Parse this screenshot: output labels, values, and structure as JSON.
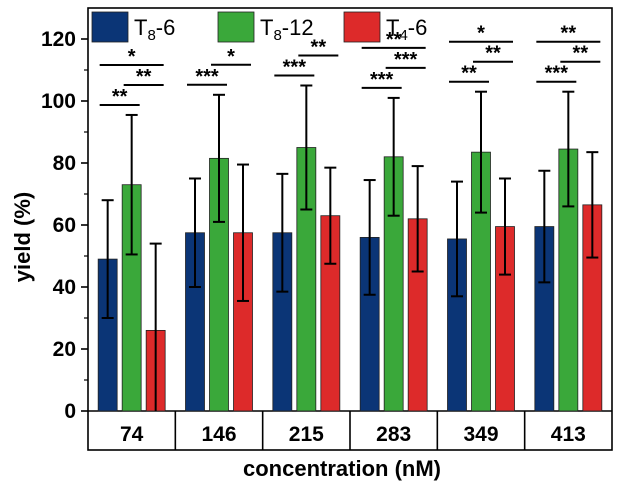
{
  "chart_data": {
    "type": "bar",
    "title": "",
    "xlabel": "concentration (nM)",
    "ylabel": "yield (%)",
    "ylim": [
      0,
      130
    ],
    "yticks": [
      0,
      20,
      40,
      60,
      80,
      100,
      120
    ],
    "categories": [
      "74",
      "146",
      "215",
      "283",
      "349",
      "413"
    ],
    "legend_placement": "top",
    "series": [
      {
        "name_main": "T",
        "name_sub": "8",
        "name_suffix": "-6",
        "color": "#0b3576",
        "values": [
          49,
          57.5,
          57.5,
          56,
          55.5,
          59.5
        ],
        "errors": [
          19,
          17.5,
          19,
          18.5,
          18.5,
          18
        ]
      },
      {
        "name_main": "T",
        "name_sub": "8",
        "name_suffix": "-12",
        "color": "#3aa83a",
        "values": [
          73,
          81.5,
          85,
          82,
          83.5,
          84.5
        ],
        "errors": [
          22.5,
          20.5,
          20,
          19,
          19.5,
          18.5
        ]
      },
      {
        "name_main": "T",
        "name_sub": "4",
        "name_suffix": "-6",
        "color": "#dd2a2a",
        "values": [
          26,
          57.5,
          63,
          62,
          59.5,
          66.5
        ],
        "errors": [
          28,
          22,
          15.5,
          17,
          15.5,
          17
        ]
      }
    ],
    "significance": [
      {
        "group": 0,
        "pairs": [
          {
            "from": 0,
            "to": 1,
            "label": "**",
            "level": 0
          },
          {
            "from": 0,
            "to": 2,
            "label": "*",
            "level": 2
          },
          {
            "from": 1,
            "to": 2,
            "label": "**",
            "level": 1
          }
        ]
      },
      {
        "group": 1,
        "pairs": [
          {
            "from": 0,
            "to": 1,
            "label": "***",
            "level": 0
          },
          {
            "from": 1,
            "to": 2,
            "label": "*",
            "level": 1
          }
        ]
      },
      {
        "group": 2,
        "pairs": [
          {
            "from": 0,
            "to": 1,
            "label": "***",
            "level": 0
          },
          {
            "from": 1,
            "to": 2,
            "label": "**",
            "level": 1
          }
        ]
      },
      {
        "group": 3,
        "pairs": [
          {
            "from": 0,
            "to": 1,
            "label": "***",
            "level": 0
          },
          {
            "from": 0,
            "to": 2,
            "label": "**",
            "level": 2
          },
          {
            "from": 1,
            "to": 2,
            "label": "***",
            "level": 1
          }
        ]
      },
      {
        "group": 4,
        "pairs": [
          {
            "from": 0,
            "to": 1,
            "label": "**",
            "level": 0
          },
          {
            "from": 0,
            "to": 2,
            "label": "*",
            "level": 2
          },
          {
            "from": 1,
            "to": 2,
            "label": "**",
            "level": 1
          }
        ]
      },
      {
        "group": 5,
        "pairs": [
          {
            "from": 0,
            "to": 1,
            "label": "***",
            "level": 0
          },
          {
            "from": 0,
            "to": 2,
            "label": "**",
            "level": 2
          },
          {
            "from": 1,
            "to": 2,
            "label": "**",
            "level": 1
          }
        ]
      }
    ]
  }
}
